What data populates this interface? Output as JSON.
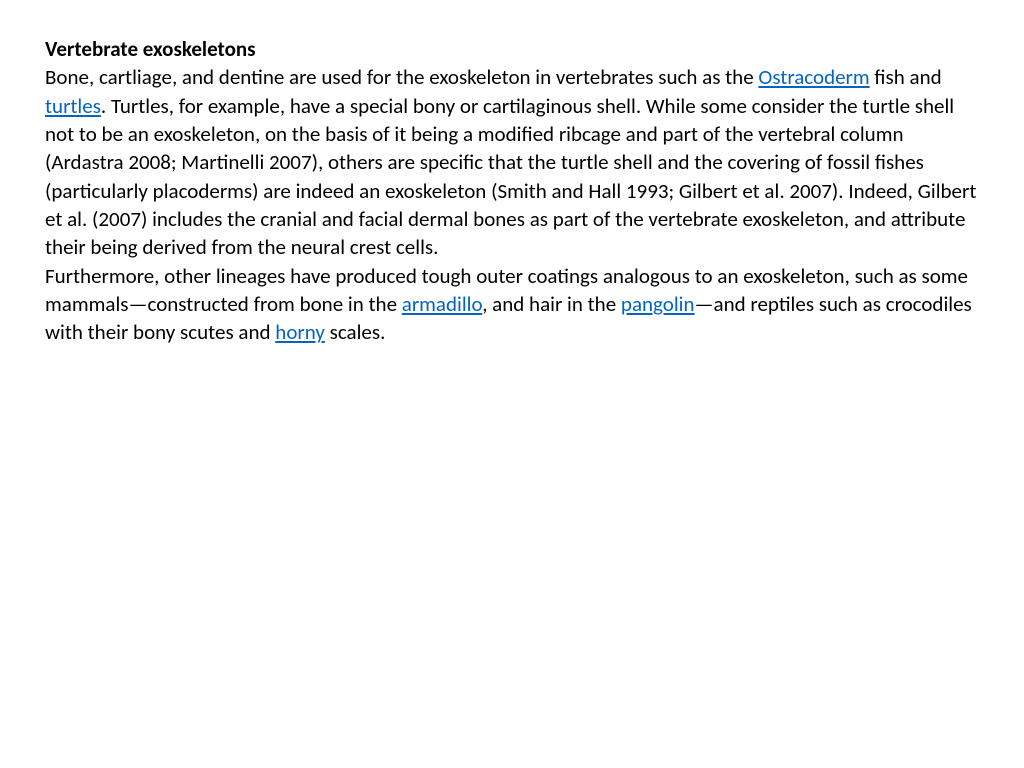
{
  "document": {
    "heading": "Vertebrate exoskeletons",
    "text_parts": {
      "p1": "Bone, cartliage, and dentine are used for the exoskeleton in vertebrates such as the ",
      "link1": "Ostracoderm",
      "p2": " fish and ",
      "link2": "turtles",
      "p3": ". Turtles, for example, have a special bony or cartilaginous shell. While some consider the turtle shell not to be an exoskeleton, on the basis of it being a modified ribcage and part of the vertebral column (Ardastra 2008; Martinelli 2007), others are specific that the turtle shell and the covering of fossil fishes (particularly placoderms) are indeed an exoskeleton (Smith and Hall 1993; Gilbert et al. 2007). Indeed, Gilbert et al. (2007) includes the cranial and facial dermal bones as part of the vertebrate exoskeleton, and attribute their being derived from the neural crest cells.",
      "p4": "Furthermore, other lineages have produced tough outer coatings analogous to an exoskeleton, such as some mammals—constructed from bone in the ",
      "link3": "armadillo",
      "p5": ", and hair in the ",
      "link4": "pangolin",
      "p6": "—and reptiles such as crocodiles with their bony scutes and ",
      "link5": "horny",
      "p7": " scales."
    },
    "styling": {
      "background_color": "#ffffff",
      "text_color": "#000000",
      "link_color": "#0563c1",
      "font_family": "Calibri, Arial, sans-serif",
      "font_size": 21,
      "line_height": 1.35,
      "heading_weight": "bold"
    }
  }
}
